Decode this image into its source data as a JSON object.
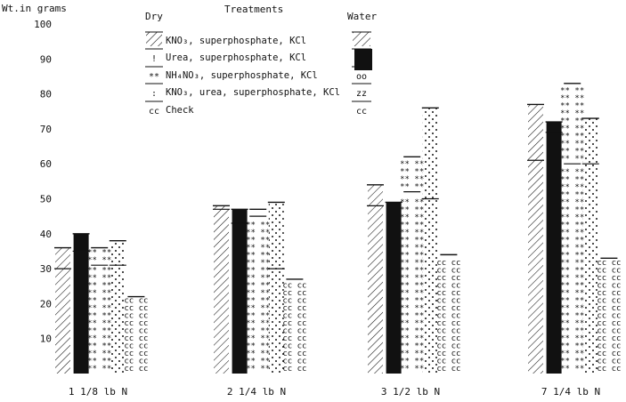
{
  "chart_data": {
    "type": "bar",
    "title": "",
    "ylabel": "Wt.in grams",
    "xlabel": "",
    "ylim": [
      0,
      100
    ],
    "yticks": [
      10,
      20,
      30,
      40,
      50,
      60,
      70,
      80,
      90,
      100
    ],
    "grid": false,
    "legend_placement": "top-center",
    "legend": {
      "dry_header": "Dry",
      "treatments_header": "Treatments",
      "water_header": "Water",
      "entries": [
        {
          "label": "KNO₃, superphosphate, KCl",
          "pattern": "hatch",
          "symbol": ""
        },
        {
          "label": "Urea, superphosphate, KCl",
          "pattern": "dot",
          "symbol": "!"
        },
        {
          "label": "NH₄NO₃, superphosphate, KCl",
          "pattern": "text",
          "symbol": "**"
        },
        {
          "label": "KNO₃, urea, superphosphate, KCl",
          "pattern": "dots",
          "symbol": ":"
        },
        {
          "label": "Check",
          "pattern": "text",
          "symbol": "cc"
        }
      ],
      "water_entries": [
        {
          "pattern": "hatch",
          "symbol": ""
        },
        {
          "pattern": "solid",
          "symbol": ""
        },
        {
          "pattern": "text",
          "symbol": "oo"
        },
        {
          "pattern": "text",
          "symbol": "zz"
        },
        {
          "pattern": "text",
          "symbol": "cc"
        }
      ]
    },
    "categories": [
      "1 1/8 lb N",
      "2 1/4 lb N",
      "3 1/2 lb N",
      "7 1/4 lb N"
    ],
    "series": [
      {
        "key": "kno3",
        "pattern": "hatch",
        "symbol": "",
        "dry": [
          30,
          47,
          48,
          61
        ],
        "water": [
          36,
          48,
          54,
          77
        ]
      },
      {
        "key": "urea",
        "pattern": "solid",
        "symbol": "",
        "dry": [
          35,
          43,
          49,
          69
        ],
        "water": [
          40,
          47,
          49,
          72
        ]
      },
      {
        "key": "nh4no3",
        "pattern": "text",
        "symbol": "**",
        "dry": [
          31,
          45,
          52,
          60
        ],
        "water": [
          36,
          47,
          62,
          83
        ]
      },
      {
        "key": "mix",
        "pattern": "dots",
        "symbol": ":",
        "dry": [
          31,
          30,
          50,
          60
        ],
        "water": [
          38,
          49,
          76,
          73
        ]
      },
      {
        "key": "check",
        "pattern": "text",
        "symbol": "cc",
        "dry": [
          22,
          27,
          34,
          33
        ],
        "water": [
          22,
          27,
          34,
          33
        ]
      }
    ],
    "colors": {
      "ink": "#111111",
      "background": "#ffffff"
    }
  }
}
